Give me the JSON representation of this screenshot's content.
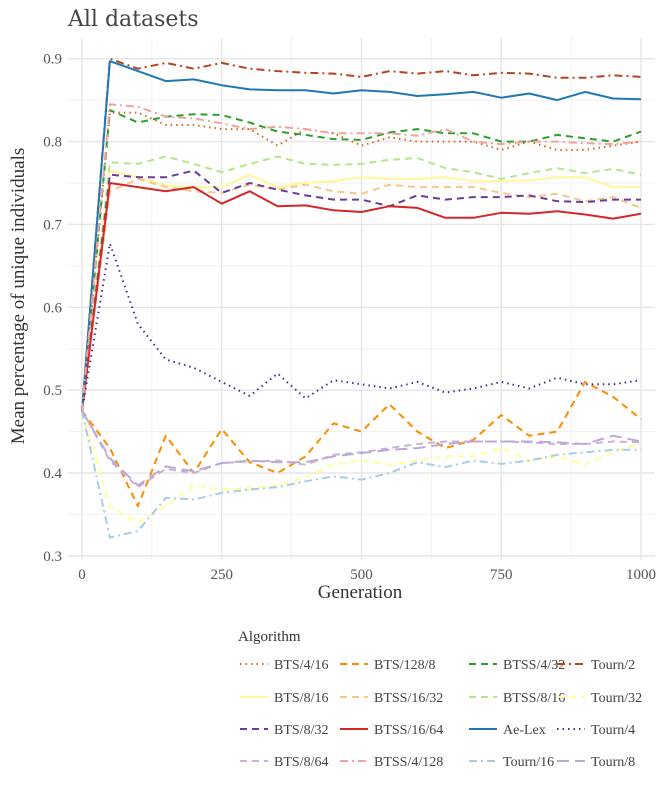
{
  "chart_data": {
    "type": "line",
    "title": "All datasets",
    "xlabel": "Generation",
    "ylabel": "Mean percentage of unique individuals",
    "xlim": [
      -25,
      1025
    ],
    "ylim": [
      0.295,
      0.925
    ],
    "x_ticks": [
      0,
      250,
      500,
      750,
      1000
    ],
    "x_tick_labels": [
      "0",
      "250",
      "500",
      "750",
      "1000"
    ],
    "y_ticks": [
      0.3,
      0.4,
      0.5,
      0.6,
      0.7,
      0.8,
      0.9
    ],
    "y_tick_labels": [
      "0.3",
      "0.4",
      "0.5",
      "0.6",
      "0.7",
      "0.8",
      "0.9"
    ],
    "grid": true,
    "legend": {
      "title": "Algorithm",
      "position": "bottom",
      "columns": 4
    },
    "x": [
      0,
      50,
      100,
      150,
      200,
      250,
      300,
      350,
      400,
      450,
      500,
      550,
      600,
      650,
      700,
      750,
      800,
      850,
      900,
      950,
      1000
    ],
    "series": [
      {
        "name": "BTS/4/16",
        "color": "#d2691e",
        "dash": "dotted",
        "values": [
          0.475,
          0.835,
          0.835,
          0.82,
          0.82,
          0.815,
          0.815,
          0.795,
          0.815,
          0.81,
          0.795,
          0.805,
          0.8,
          0.8,
          0.8,
          0.79,
          0.8,
          0.79,
          0.79,
          0.795,
          0.8
        ]
      },
      {
        "name": "BTS/128/8",
        "color": "#ff8c00",
        "dash": "dashed",
        "values": [
          0.475,
          0.43,
          0.36,
          0.445,
          0.4,
          0.453,
          0.413,
          0.4,
          0.42,
          0.46,
          0.45,
          0.483,
          0.45,
          0.43,
          0.44,
          0.47,
          0.445,
          0.45,
          0.51,
          0.492,
          0.465
        ]
      },
      {
        "name": "BTSS/4/32",
        "color": "#2ca02c",
        "dash": "dashed",
        "values": [
          0.475,
          0.838,
          0.823,
          0.83,
          0.833,
          0.832,
          0.823,
          0.812,
          0.808,
          0.803,
          0.802,
          0.811,
          0.815,
          0.81,
          0.81,
          0.8,
          0.8,
          0.808,
          0.804,
          0.8,
          0.812
        ]
      },
      {
        "name": "Tourn/2",
        "color": "#b5451b",
        "dash": "dashdot",
        "values": [
          0.475,
          0.9,
          0.888,
          0.895,
          0.888,
          0.895,
          0.888,
          0.885,
          0.883,
          0.882,
          0.878,
          0.885,
          0.882,
          0.885,
          0.88,
          0.883,
          0.882,
          0.877,
          0.877,
          0.88,
          0.878
        ]
      },
      {
        "name": "BTS/8/16",
        "color": "#fff79a",
        "dash": "solid",
        "values": [
          0.475,
          0.765,
          0.757,
          0.747,
          0.745,
          0.745,
          0.76,
          0.745,
          0.75,
          0.752,
          0.757,
          0.755,
          0.755,
          0.757,
          0.752,
          0.752,
          0.753,
          0.757,
          0.757,
          0.745,
          0.745
        ]
      },
      {
        "name": "BTSS/16/32",
        "color": "#f9c587",
        "dash": "dashed",
        "values": [
          0.475,
          0.74,
          0.755,
          0.745,
          0.74,
          0.738,
          0.748,
          0.742,
          0.748,
          0.74,
          0.737,
          0.748,
          0.745,
          0.745,
          0.745,
          0.738,
          0.733,
          0.737,
          0.728,
          0.733,
          0.72
        ]
      },
      {
        "name": "BTSS/8/16",
        "color": "#b5e68c",
        "dash": "dashed",
        "values": [
          0.475,
          0.775,
          0.773,
          0.782,
          0.773,
          0.763,
          0.773,
          0.782,
          0.773,
          0.772,
          0.773,
          0.778,
          0.78,
          0.768,
          0.763,
          0.755,
          0.762,
          0.768,
          0.762,
          0.767,
          0.76
        ]
      },
      {
        "name": "Tourn/32",
        "color": "#ffff99",
        "dash": "dashed",
        "values": [
          0.475,
          0.36,
          0.34,
          0.36,
          0.385,
          0.38,
          0.382,
          0.385,
          0.395,
          0.41,
          0.415,
          0.41,
          0.415,
          0.42,
          0.42,
          0.43,
          0.415,
          0.42,
          0.41,
          0.425,
          0.437
        ]
      },
      {
        "name": "BTS/8/32",
        "color": "#6a3d9a",
        "dash": "dashed",
        "values": [
          0.475,
          0.76,
          0.757,
          0.757,
          0.765,
          0.738,
          0.75,
          0.742,
          0.735,
          0.73,
          0.73,
          0.722,
          0.735,
          0.73,
          0.733,
          0.733,
          0.735,
          0.728,
          0.727,
          0.73,
          0.73
        ]
      },
      {
        "name": "BTSS/16/64",
        "color": "#d62728",
        "dash": "solid",
        "values": [
          0.475,
          0.75,
          0.745,
          0.74,
          0.745,
          0.725,
          0.74,
          0.722,
          0.723,
          0.717,
          0.715,
          0.722,
          0.72,
          0.708,
          0.708,
          0.714,
          0.713,
          0.716,
          0.712,
          0.707,
          0.713
        ]
      },
      {
        "name": "Ae-Lex",
        "color": "#1f78b4",
        "dash": "solid",
        "values": [
          0.475,
          0.897,
          0.885,
          0.873,
          0.875,
          0.868,
          0.863,
          0.862,
          0.862,
          0.858,
          0.862,
          0.86,
          0.855,
          0.857,
          0.86,
          0.853,
          0.858,
          0.85,
          0.86,
          0.852,
          0.851
        ]
      },
      {
        "name": "Tourn/4",
        "color": "#4a2a8c",
        "dash": "dotted",
        "values": [
          0.475,
          0.677,
          0.58,
          0.537,
          0.527,
          0.51,
          0.493,
          0.52,
          0.49,
          0.512,
          0.507,
          0.502,
          0.51,
          0.497,
          0.502,
          0.51,
          0.502,
          0.515,
          0.507,
          0.507,
          0.512
        ]
      },
      {
        "name": "BTS/8/64",
        "color": "#cab2d6",
        "dash": "dashed",
        "values": [
          0.475,
          0.415,
          0.383,
          0.405,
          0.4,
          0.412,
          0.414,
          0.415,
          0.41,
          0.422,
          0.425,
          0.43,
          0.435,
          0.438,
          0.438,
          0.438,
          0.437,
          0.435,
          0.435,
          0.438,
          0.437
        ]
      },
      {
        "name": "BTSS/4/128",
        "color": "#f0a39d",
        "dash": "dashdot",
        "values": [
          0.475,
          0.845,
          0.842,
          0.83,
          0.828,
          0.822,
          0.815,
          0.818,
          0.815,
          0.81,
          0.81,
          0.81,
          0.807,
          0.815,
          0.8,
          0.797,
          0.8,
          0.8,
          0.798,
          0.797,
          0.8
        ]
      },
      {
        "name": "Tourn/16",
        "color": "#a6cee3",
        "dash": "dashdot",
        "values": [
          0.475,
          0.322,
          0.33,
          0.37,
          0.368,
          0.376,
          0.38,
          0.383,
          0.39,
          0.396,
          0.392,
          0.4,
          0.413,
          0.407,
          0.415,
          0.411,
          0.415,
          0.422,
          0.425,
          0.428,
          0.428
        ]
      },
      {
        "name": "Tourn/8",
        "color": "#bca9d6",
        "dash": "longdash",
        "values": [
          0.475,
          0.418,
          0.385,
          0.408,
          0.402,
          0.412,
          0.415,
          0.413,
          0.413,
          0.42,
          0.424,
          0.428,
          0.43,
          0.435,
          0.438,
          0.438,
          0.438,
          0.437,
          0.435,
          0.445,
          0.438
        ]
      }
    ]
  }
}
